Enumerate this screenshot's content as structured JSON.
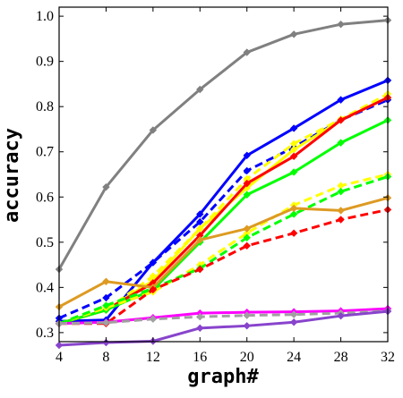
{
  "chart_data": {
    "type": "line",
    "xlabel": "graph#",
    "ylabel": "accuracy",
    "x": [
      4,
      8,
      12,
      16,
      20,
      24,
      28,
      32
    ],
    "xlim": [
      4,
      32
    ],
    "ylim": [
      0.28,
      1.02
    ],
    "xticks": [
      "4",
      "8",
      "12",
      "16",
      "20",
      "24",
      "28",
      "32"
    ],
    "yticks": [
      "0.3",
      "0.4",
      "0.5",
      "0.6",
      "0.7",
      "0.8",
      "0.9",
      "1.0"
    ],
    "grid": false,
    "legend": "none",
    "series": [
      {
        "color": "#808080",
        "style": "solid",
        "values": [
          0.44,
          0.622,
          0.748,
          0.838,
          0.92,
          0.96,
          0.982,
          0.991
        ]
      },
      {
        "color": "#0000ff",
        "style": "solid",
        "values": [
          0.325,
          0.328,
          0.455,
          0.562,
          0.692,
          0.752,
          0.815,
          0.858
        ]
      },
      {
        "color": "#0000ff",
        "style": "dashed",
        "values": [
          0.332,
          0.377,
          0.455,
          0.545,
          0.658,
          0.71,
          0.77,
          0.815
        ]
      },
      {
        "color": "#ffff00",
        "style": "dashed",
        "values": [
          0.32,
          0.35,
          0.425,
          0.53,
          0.64,
          0.718,
          0.772,
          0.828
        ]
      },
      {
        "color": "#ffff00",
        "style": "solid",
        "values": [
          0.32,
          0.35,
          0.415,
          0.53,
          0.62,
          0.705,
          0.77,
          0.82
        ]
      },
      {
        "color": "#ff0000",
        "style": "solid",
        "values": [
          0.32,
          0.35,
          0.41,
          0.515,
          0.63,
          0.69,
          0.77,
          0.82
        ]
      },
      {
        "color": "#00ff00",
        "style": "solid",
        "values": [
          0.32,
          0.35,
          0.395,
          0.5,
          0.605,
          0.655,
          0.72,
          0.77
        ]
      },
      {
        "color": "#ffff00",
        "style": "dashed",
        "values": [
          0.32,
          0.355,
          0.39,
          0.45,
          0.52,
          0.582,
          0.625,
          0.65
        ]
      },
      {
        "color": "#00ff00",
        "style": "dashed",
        "values": [
          0.32,
          0.36,
          0.398,
          0.442,
          0.51,
          0.562,
          0.612,
          0.645
        ]
      },
      {
        "color": "#dd9a22",
        "style": "solid",
        "values": [
          0.357,
          0.413,
          0.4,
          0.505,
          0.53,
          0.575,
          0.57,
          0.598
        ]
      },
      {
        "color": "#ff0000",
        "style": "dashed",
        "values": [
          0.32,
          0.32,
          0.395,
          0.44,
          0.492,
          0.52,
          0.55,
          0.572
        ]
      },
      {
        "color": "#ff00ff",
        "style": "solid",
        "values": [
          0.32,
          0.323,
          0.333,
          0.343,
          0.345,
          0.346,
          0.348,
          0.353
        ]
      },
      {
        "color": "#a0a0a0",
        "style": "dashed",
        "values": [
          0.32,
          0.322,
          0.33,
          0.335,
          0.338,
          0.34,
          0.343,
          0.348
        ]
      },
      {
        "color": "#8844cc",
        "style": "solid",
        "values": [
          0.272,
          0.278,
          0.281,
          0.31,
          0.315,
          0.323,
          0.337,
          0.347
        ]
      }
    ]
  }
}
